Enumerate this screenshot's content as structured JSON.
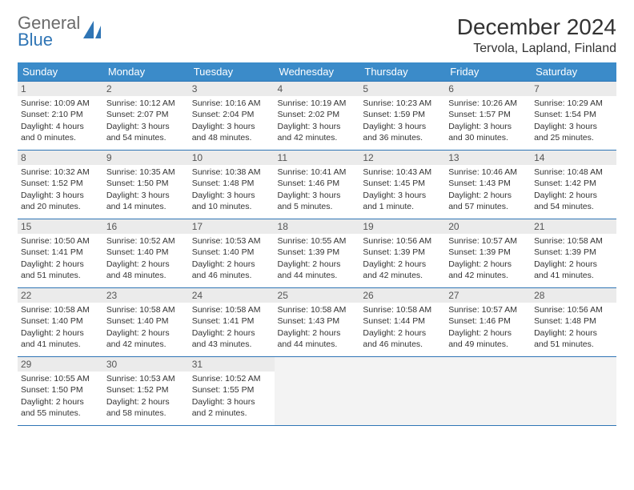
{
  "logo": {
    "line1": "General",
    "line2": "Blue"
  },
  "title": "December 2024",
  "location": "Tervola, Lapland, Finland",
  "header_bg": "#3b8bc9",
  "border_color": "#2f75b5",
  "daynum_bg": "#ebebeb",
  "empty_bg": "#f3f3f3",
  "columns": [
    "Sunday",
    "Monday",
    "Tuesday",
    "Wednesday",
    "Thursday",
    "Friday",
    "Saturday"
  ],
  "weeks": [
    [
      {
        "n": "1",
        "sr": "Sunrise: 10:09 AM",
        "ss": "Sunset: 2:10 PM",
        "dl": "Daylight: 4 hours and 0 minutes."
      },
      {
        "n": "2",
        "sr": "Sunrise: 10:12 AM",
        "ss": "Sunset: 2:07 PM",
        "dl": "Daylight: 3 hours and 54 minutes."
      },
      {
        "n": "3",
        "sr": "Sunrise: 10:16 AM",
        "ss": "Sunset: 2:04 PM",
        "dl": "Daylight: 3 hours and 48 minutes."
      },
      {
        "n": "4",
        "sr": "Sunrise: 10:19 AM",
        "ss": "Sunset: 2:02 PM",
        "dl": "Daylight: 3 hours and 42 minutes."
      },
      {
        "n": "5",
        "sr": "Sunrise: 10:23 AM",
        "ss": "Sunset: 1:59 PM",
        "dl": "Daylight: 3 hours and 36 minutes."
      },
      {
        "n": "6",
        "sr": "Sunrise: 10:26 AM",
        "ss": "Sunset: 1:57 PM",
        "dl": "Daylight: 3 hours and 30 minutes."
      },
      {
        "n": "7",
        "sr": "Sunrise: 10:29 AM",
        "ss": "Sunset: 1:54 PM",
        "dl": "Daylight: 3 hours and 25 minutes."
      }
    ],
    [
      {
        "n": "8",
        "sr": "Sunrise: 10:32 AM",
        "ss": "Sunset: 1:52 PM",
        "dl": "Daylight: 3 hours and 20 minutes."
      },
      {
        "n": "9",
        "sr": "Sunrise: 10:35 AM",
        "ss": "Sunset: 1:50 PM",
        "dl": "Daylight: 3 hours and 14 minutes."
      },
      {
        "n": "10",
        "sr": "Sunrise: 10:38 AM",
        "ss": "Sunset: 1:48 PM",
        "dl": "Daylight: 3 hours and 10 minutes."
      },
      {
        "n": "11",
        "sr": "Sunrise: 10:41 AM",
        "ss": "Sunset: 1:46 PM",
        "dl": "Daylight: 3 hours and 5 minutes."
      },
      {
        "n": "12",
        "sr": "Sunrise: 10:43 AM",
        "ss": "Sunset: 1:45 PM",
        "dl": "Daylight: 3 hours and 1 minute."
      },
      {
        "n": "13",
        "sr": "Sunrise: 10:46 AM",
        "ss": "Sunset: 1:43 PM",
        "dl": "Daylight: 2 hours and 57 minutes."
      },
      {
        "n": "14",
        "sr": "Sunrise: 10:48 AM",
        "ss": "Sunset: 1:42 PM",
        "dl": "Daylight: 2 hours and 54 minutes."
      }
    ],
    [
      {
        "n": "15",
        "sr": "Sunrise: 10:50 AM",
        "ss": "Sunset: 1:41 PM",
        "dl": "Daylight: 2 hours and 51 minutes."
      },
      {
        "n": "16",
        "sr": "Sunrise: 10:52 AM",
        "ss": "Sunset: 1:40 PM",
        "dl": "Daylight: 2 hours and 48 minutes."
      },
      {
        "n": "17",
        "sr": "Sunrise: 10:53 AM",
        "ss": "Sunset: 1:40 PM",
        "dl": "Daylight: 2 hours and 46 minutes."
      },
      {
        "n": "18",
        "sr": "Sunrise: 10:55 AM",
        "ss": "Sunset: 1:39 PM",
        "dl": "Daylight: 2 hours and 44 minutes."
      },
      {
        "n": "19",
        "sr": "Sunrise: 10:56 AM",
        "ss": "Sunset: 1:39 PM",
        "dl": "Daylight: 2 hours and 42 minutes."
      },
      {
        "n": "20",
        "sr": "Sunrise: 10:57 AM",
        "ss": "Sunset: 1:39 PM",
        "dl": "Daylight: 2 hours and 42 minutes."
      },
      {
        "n": "21",
        "sr": "Sunrise: 10:58 AM",
        "ss": "Sunset: 1:39 PM",
        "dl": "Daylight: 2 hours and 41 minutes."
      }
    ],
    [
      {
        "n": "22",
        "sr": "Sunrise: 10:58 AM",
        "ss": "Sunset: 1:40 PM",
        "dl": "Daylight: 2 hours and 41 minutes."
      },
      {
        "n": "23",
        "sr": "Sunrise: 10:58 AM",
        "ss": "Sunset: 1:40 PM",
        "dl": "Daylight: 2 hours and 42 minutes."
      },
      {
        "n": "24",
        "sr": "Sunrise: 10:58 AM",
        "ss": "Sunset: 1:41 PM",
        "dl": "Daylight: 2 hours and 43 minutes."
      },
      {
        "n": "25",
        "sr": "Sunrise: 10:58 AM",
        "ss": "Sunset: 1:43 PM",
        "dl": "Daylight: 2 hours and 44 minutes."
      },
      {
        "n": "26",
        "sr": "Sunrise: 10:58 AM",
        "ss": "Sunset: 1:44 PM",
        "dl": "Daylight: 2 hours and 46 minutes."
      },
      {
        "n": "27",
        "sr": "Sunrise: 10:57 AM",
        "ss": "Sunset: 1:46 PM",
        "dl": "Daylight: 2 hours and 49 minutes."
      },
      {
        "n": "28",
        "sr": "Sunrise: 10:56 AM",
        "ss": "Sunset: 1:48 PM",
        "dl": "Daylight: 2 hours and 51 minutes."
      }
    ],
    [
      {
        "n": "29",
        "sr": "Sunrise: 10:55 AM",
        "ss": "Sunset: 1:50 PM",
        "dl": "Daylight: 2 hours and 55 minutes."
      },
      {
        "n": "30",
        "sr": "Sunrise: 10:53 AM",
        "ss": "Sunset: 1:52 PM",
        "dl": "Daylight: 2 hours and 58 minutes."
      },
      {
        "n": "31",
        "sr": "Sunrise: 10:52 AM",
        "ss": "Sunset: 1:55 PM",
        "dl": "Daylight: 3 hours and 2 minutes."
      },
      null,
      null,
      null,
      null
    ]
  ]
}
